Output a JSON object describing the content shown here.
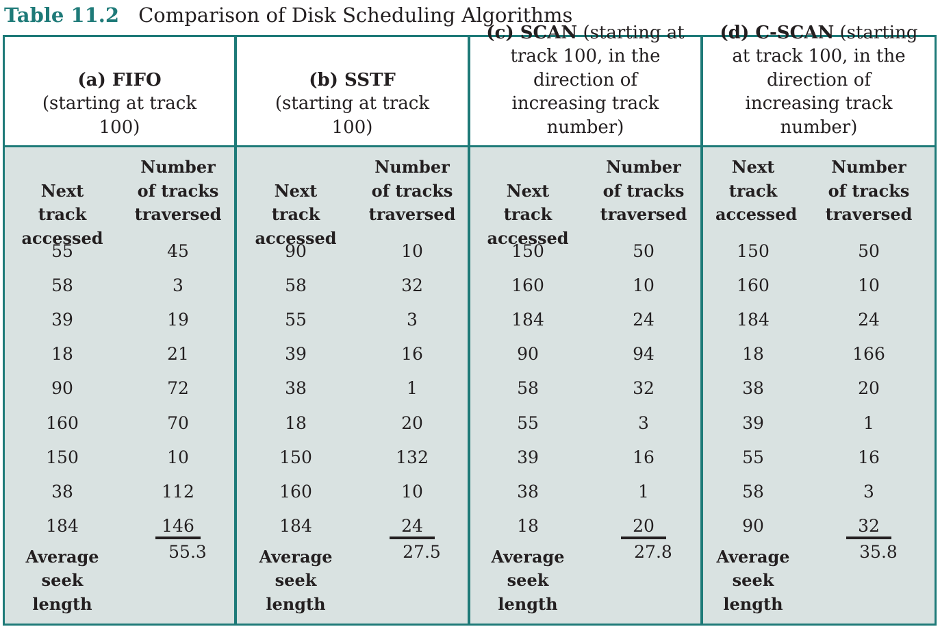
{
  "caption": {
    "number": "Table 11.2",
    "title": "Comparison of Disk Scheduling Algorithms"
  },
  "column_headers": {
    "next_track": "Next track accessed",
    "tracks_traversed": "Number of tracks traversed",
    "average": "Average seek length"
  },
  "algorithms": [
    {
      "label": "(a) FIFO",
      "description": "(starting at track 100)",
      "next_header": "Next track accessed",
      "rows": [
        [
          "55",
          "45"
        ],
        [
          "58",
          "3"
        ],
        [
          "39",
          "19"
        ],
        [
          "18",
          "21"
        ],
        [
          "90",
          "72"
        ],
        [
          "160",
          "70"
        ],
        [
          "150",
          "10"
        ],
        [
          "38",
          "112"
        ],
        [
          "184",
          "146"
        ]
      ],
      "average": "55.3"
    },
    {
      "label": "(b) SSTF",
      "description": "(starting at track 100)",
      "next_header": "Next track accessed",
      "rows": [
        [
          "90",
          "10"
        ],
        [
          "58",
          "32"
        ],
        [
          "55",
          "3"
        ],
        [
          "39",
          "16"
        ],
        [
          "38",
          "1"
        ],
        [
          "18",
          "20"
        ],
        [
          "150",
          "132"
        ],
        [
          "160",
          "10"
        ],
        [
          "184",
          "24"
        ]
      ],
      "average": "27.5"
    },
    {
      "label": "(c) SCAN",
      "description": "(starting at track 100, in the direction of increasing track number)",
      "next_header": "Next track accessed",
      "rows": [
        [
          "150",
          "50"
        ],
        [
          "160",
          "10"
        ],
        [
          "184",
          "24"
        ],
        [
          "90",
          "94"
        ],
        [
          "58",
          "32"
        ],
        [
          "55",
          "3"
        ],
        [
          "39",
          "16"
        ],
        [
          "38",
          "1"
        ],
        [
          "18",
          "20"
        ]
      ],
      "average": "27.8"
    },
    {
      "label": "(d) C-SCAN",
      "description": "(starting at track 100, in the direction of increasing track number)",
      "next_header": "Next track accessed",
      "rows": [
        [
          "150",
          "50"
        ],
        [
          "160",
          "10"
        ],
        [
          "184",
          "24"
        ],
        [
          "18",
          "166"
        ],
        [
          "38",
          "20"
        ],
        [
          "39",
          "1"
        ],
        [
          "55",
          "16"
        ],
        [
          "58",
          "3"
        ],
        [
          "90",
          "32"
        ]
      ],
      "average": "35.8"
    }
  ]
}
